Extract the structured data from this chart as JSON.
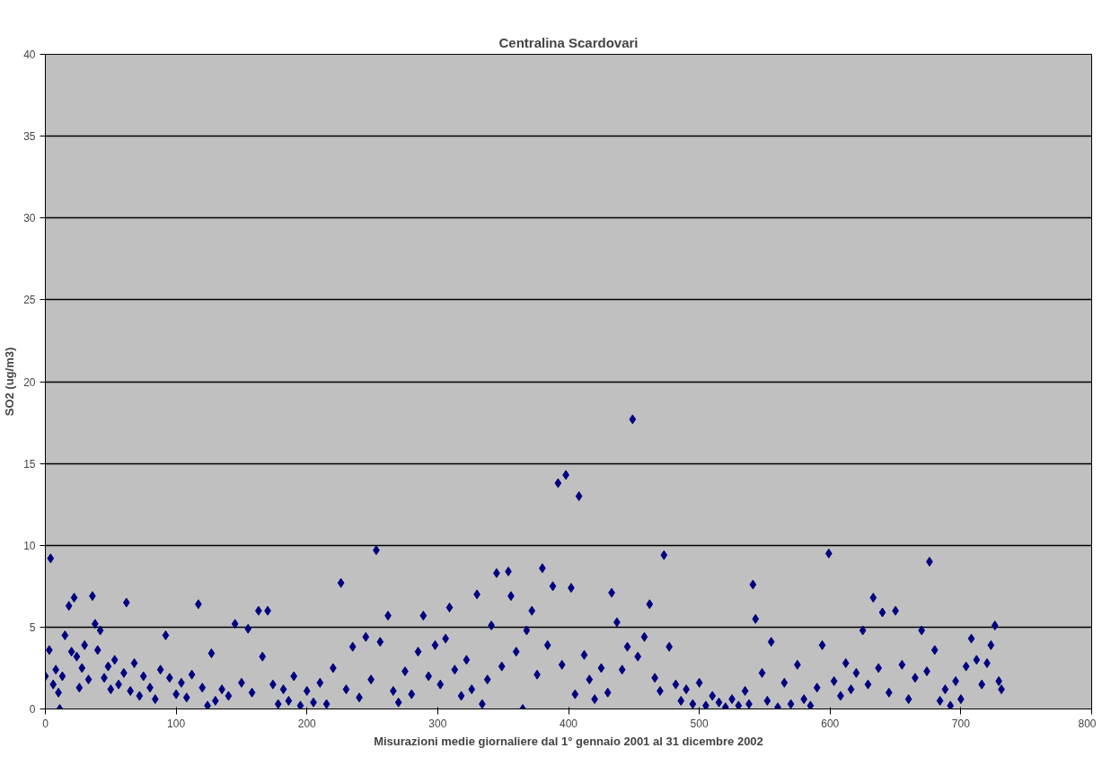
{
  "chart_data": {
    "type": "scatter",
    "title": "Centralina Scardovari",
    "xlabel": "Misurazioni medie giornaliere dal 1° gennaio 2001 al 31 dicembre 2002",
    "ylabel": "SO2 (ug/m3)",
    "x": [
      0,
      3,
      4,
      6,
      8,
      10,
      11,
      13,
      15,
      18,
      20,
      22,
      24,
      26,
      28,
      30,
      33,
      36,
      38,
      40,
      42,
      45,
      48,
      50,
      53,
      56,
      60,
      62,
      65,
      68,
      72,
      75,
      80,
      84,
      88,
      92,
      95,
      100,
      104,
      108,
      112,
      117,
      120,
      124,
      127,
      130,
      135,
      140,
      145,
      150,
      155,
      158,
      163,
      166,
      170,
      174,
      178,
      182,
      186,
      190,
      195,
      200,
      205,
      210,
      215,
      220,
      226,
      230,
      235,
      240,
      245,
      249,
      253,
      256,
      262,
      266,
      270,
      275,
      280,
      285,
      289,
      293,
      298,
      302,
      306,
      309,
      313,
      318,
      322,
      326,
      330,
      334,
      338,
      341,
      345,
      349,
      354,
      356,
      360,
      365,
      368,
      372,
      376,
      380,
      384,
      388,
      392,
      395,
      398,
      402,
      405,
      408,
      412,
      416,
      420,
      425,
      430,
      433,
      437,
      441,
      445,
      449,
      453,
      458,
      462,
      466,
      470,
      473,
      477,
      482,
      486,
      490,
      495,
      500,
      505,
      510,
      515,
      520,
      525,
      530,
      535,
      538,
      541,
      543,
      548,
      552,
      555,
      560,
      565,
      570,
      575,
      580,
      585,
      590,
      594,
      599,
      603,
      608,
      612,
      616,
      620,
      625,
      629,
      633,
      637,
      640,
      645,
      650,
      655,
      660,
      665,
      670,
      674,
      676,
      680,
      684,
      688,
      692,
      696,
      700,
      704,
      708,
      712,
      716,
      720,
      723,
      726,
      729,
      731
    ],
    "values": [
      2.0,
      3.6,
      9.2,
      1.5,
      2.4,
      1.0,
      0.0,
      2.0,
      4.5,
      6.3,
      3.5,
      6.8,
      3.2,
      1.3,
      2.5,
      3.9,
      1.8,
      6.9,
      5.2,
      3.6,
      4.8,
      1.9,
      2.6,
      1.2,
      3.0,
      1.5,
      2.2,
      6.5,
      1.1,
      2.8,
      0.8,
      2.0,
      1.3,
      0.6,
      2.4,
      4.5,
      1.9,
      0.9,
      1.6,
      0.7,
      2.1,
      6.4,
      1.3,
      0.2,
      3.4,
      0.5,
      1.2,
      0.8,
      5.2,
      1.6,
      4.9,
      1.0,
      6.0,
      3.2,
      6.0,
      1.5,
      0.3,
      1.2,
      0.5,
      2.0,
      0.2,
      1.1,
      0.4,
      1.6,
      0.3,
      2.5,
      7.7,
      1.2,
      3.8,
      0.7,
      4.4,
      1.8,
      9.7,
      4.1,
      5.7,
      1.1,
      0.4,
      2.3,
      0.9,
      3.5,
      5.7,
      2.0,
      3.9,
      1.5,
      4.3,
      6.2,
      2.4,
      0.8,
      3.0,
      1.2,
      7.0,
      0.3,
      1.8,
      5.1,
      8.3,
      2.6,
      8.4,
      6.9,
      3.5,
      0.0,
      4.8,
      6.0,
      2.1,
      8.6,
      3.9,
      7.5,
      13.8,
      2.7,
      14.3,
      7.4,
      0.9,
      13.0,
      3.3,
      1.8,
      0.6,
      2.5,
      1.0,
      7.1,
      5.3,
      2.4,
      3.8,
      17.7,
      3.2,
      4.4,
      6.4,
      1.9,
      1.1,
      9.4,
      3.8,
      1.5,
      0.5,
      1.2,
      0.3,
      1.6,
      0.2,
      0.8,
      0.4,
      0.1,
      0.6,
      0.2,
      1.1,
      0.3,
      7.6,
      5.5,
      2.2,
      0.5,
      4.1,
      0.1,
      1.6,
      0.3,
      2.7,
      0.6,
      0.2,
      1.3,
      3.9,
      9.5,
      1.7,
      0.8,
      2.8,
      1.2,
      2.2,
      4.8,
      1.5,
      6.8,
      2.5,
      5.9,
      1.0,
      6.0,
      2.7,
      0.6,
      1.9,
      4.8,
      2.3,
      9.0,
      3.6,
      0.5,
      1.2,
      0.2,
      1.7,
      0.6,
      2.6,
      4.3,
      3.0,
      1.5,
      2.8,
      3.9,
      5.1,
      1.7,
      1.2
    ],
    "color": "#000080",
    "marker": "diamond",
    "xlim": [
      0,
      800
    ],
    "xticks": [
      0,
      100,
      200,
      300,
      400,
      500,
      600,
      700,
      800
    ],
    "ylim": [
      0,
      40
    ],
    "yticks": [
      0,
      5,
      10,
      15,
      20,
      25,
      30,
      35,
      40
    ],
    "grid": "y"
  }
}
